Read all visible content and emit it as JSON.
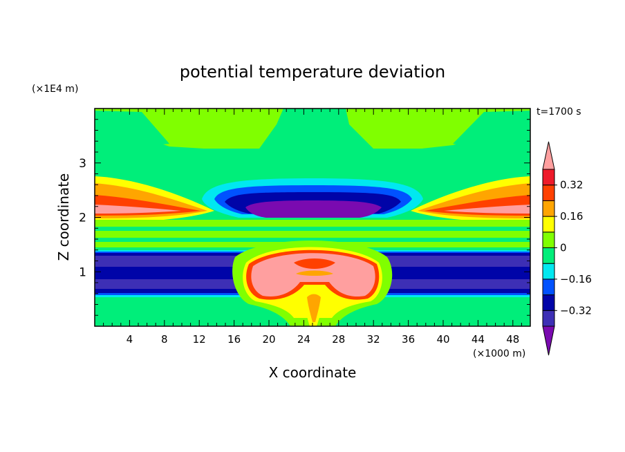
{
  "chart_data": {
    "type": "heatmap",
    "title": "potential temperature deviation",
    "time_label": "t=1700 s",
    "xlabel": "X coordinate",
    "ylabel": "Z coordinate",
    "x_unit": "(×1000 m)",
    "y_unit": "(×1E4 m)",
    "xlim": [
      0,
      50
    ],
    "ylim": [
      0,
      4
    ],
    "x_ticks": [
      4,
      8,
      12,
      16,
      20,
      24,
      28,
      32,
      36,
      40,
      44,
      48
    ],
    "y_ticks": [
      1,
      2,
      3
    ],
    "x_tick_labels": [
      "4",
      "8",
      "12",
      "16",
      "20",
      "24",
      "28",
      "32",
      "36",
      "40",
      "44",
      "48"
    ],
    "y_tick_labels": [
      "1",
      "2",
      "3"
    ],
    "colorbar": {
      "levels": [
        -0.4,
        -0.32,
        -0.24,
        -0.16,
        -0.08,
        0,
        0.08,
        0.16,
        0.24,
        0.32,
        0.4
      ],
      "labels": [
        "0.32",
        "0.16",
        "0",
        "−0.16",
        "−0.32"
      ],
      "label_values": [
        0.32,
        0.16,
        0,
        -0.16,
        -0.32
      ],
      "colors": [
        "#7a0ab0",
        "#3d2fb5",
        "#0004a8",
        "#0052ff",
        "#00e8f0",
        "#00ee7a",
        "#80ff00",
        "#ffff00",
        "#ffa500",
        "#ff4000",
        "#ee1a2a",
        "#ff9f9f"
      ]
    }
  }
}
